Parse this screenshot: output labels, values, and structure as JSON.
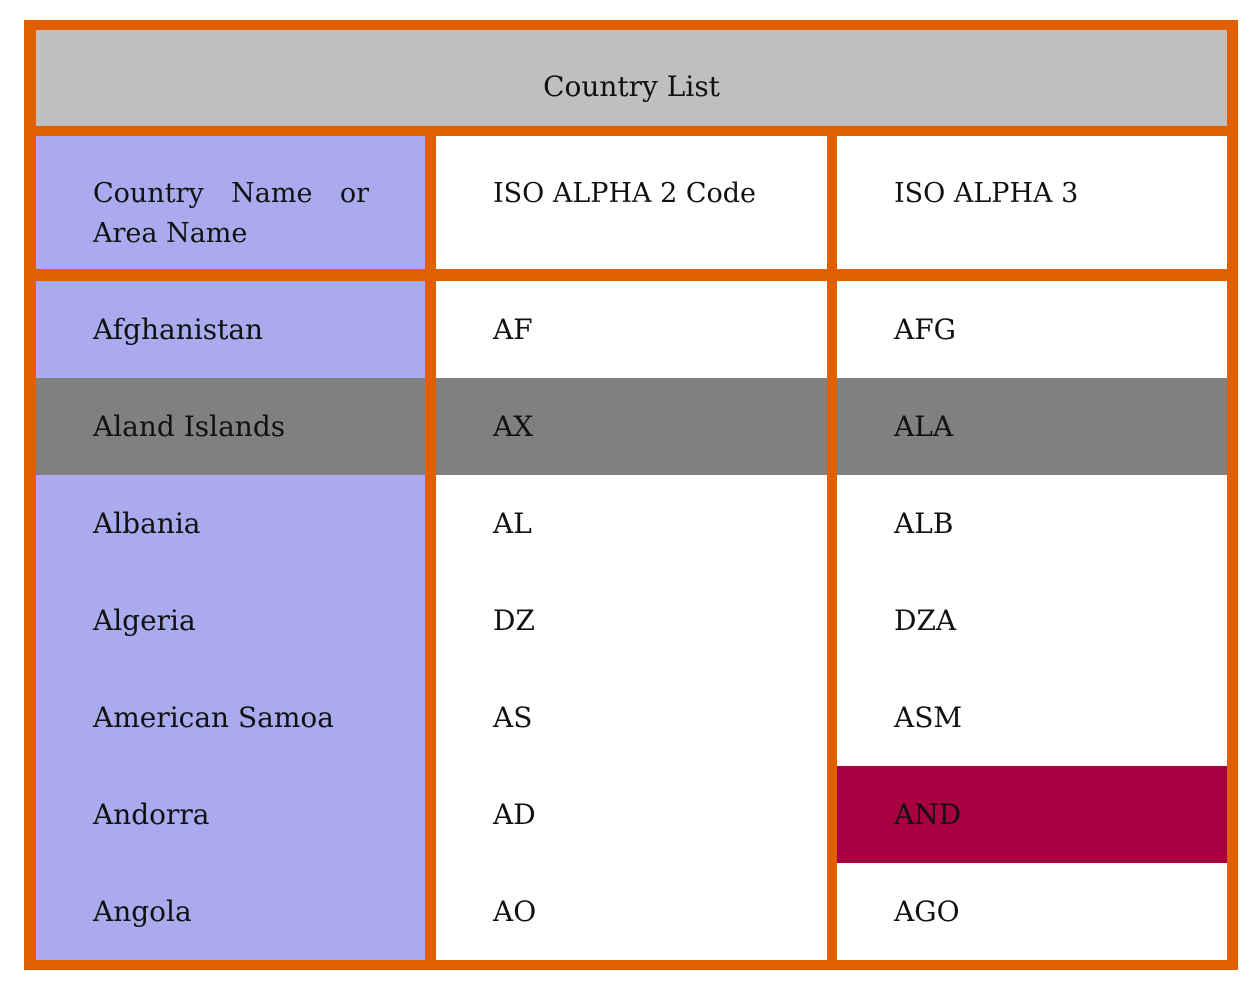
{
  "table": {
    "title": "Country List",
    "headers": {
      "name": "Country Name or Area Name",
      "alpha2": "ISO ALPHA 2 Code",
      "alpha3": "ISO ALPHA 3"
    },
    "rows": [
      {
        "name": "Afghanistan",
        "alpha2": "AF",
        "alpha3": "AFG"
      },
      {
        "name": "Aland Islands",
        "alpha2": "AX",
        "alpha3": "ALA"
      },
      {
        "name": "Albania",
        "alpha2": "AL",
        "alpha3": "ALB"
      },
      {
        "name": "Algeria",
        "alpha2": "DZ",
        "alpha3": "DZA"
      },
      {
        "name": "American Samoa",
        "alpha2": "AS",
        "alpha3": "ASM"
      },
      {
        "name": "Andorra",
        "alpha2": "AD",
        "alpha3": "AND"
      },
      {
        "name": "Angola",
        "alpha2": "AO",
        "alpha3": "AGO"
      }
    ]
  },
  "colors": {
    "border": "#e06000",
    "title_bg": "#bfbfbf",
    "name_col_bg": "#aaaaee",
    "highlight_row_bg": "#808080",
    "highlight_cell_bg": "#a80040"
  }
}
